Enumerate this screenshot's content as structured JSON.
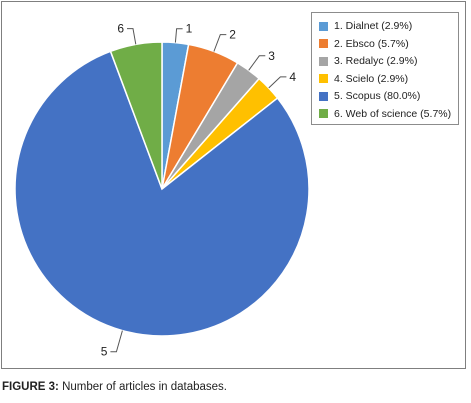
{
  "chart_data": {
    "type": "pie",
    "title": "",
    "slices": [
      {
        "label": "1",
        "legend": "1. Dialnet (2.9%)",
        "value": 2.9,
        "color": "#5b9bd5"
      },
      {
        "label": "2",
        "legend": "2. Ebsco (5.7%)",
        "value": 5.7,
        "color": "#ed7d31"
      },
      {
        "label": "3",
        "legend": "3. Redalyc (2.9%)",
        "value": 2.9,
        "color": "#a5a5a5"
      },
      {
        "label": "4",
        "legend": "4. Scielo (2.9%)",
        "value": 2.9,
        "color": "#ffc000"
      },
      {
        "label": "5",
        "legend": "5. Scopus (80.0%)",
        "value": 80.0,
        "color": "#4472c4"
      },
      {
        "label": "6",
        "legend": "6. Web of science (5.7%)",
        "value": 5.7,
        "color": "#70ad47"
      }
    ],
    "start_angle": "12 o'clock, clockwise",
    "legend_position": "top-right"
  },
  "caption": {
    "label": "FIGURE 3:",
    "text": " Number of articles in databases."
  }
}
